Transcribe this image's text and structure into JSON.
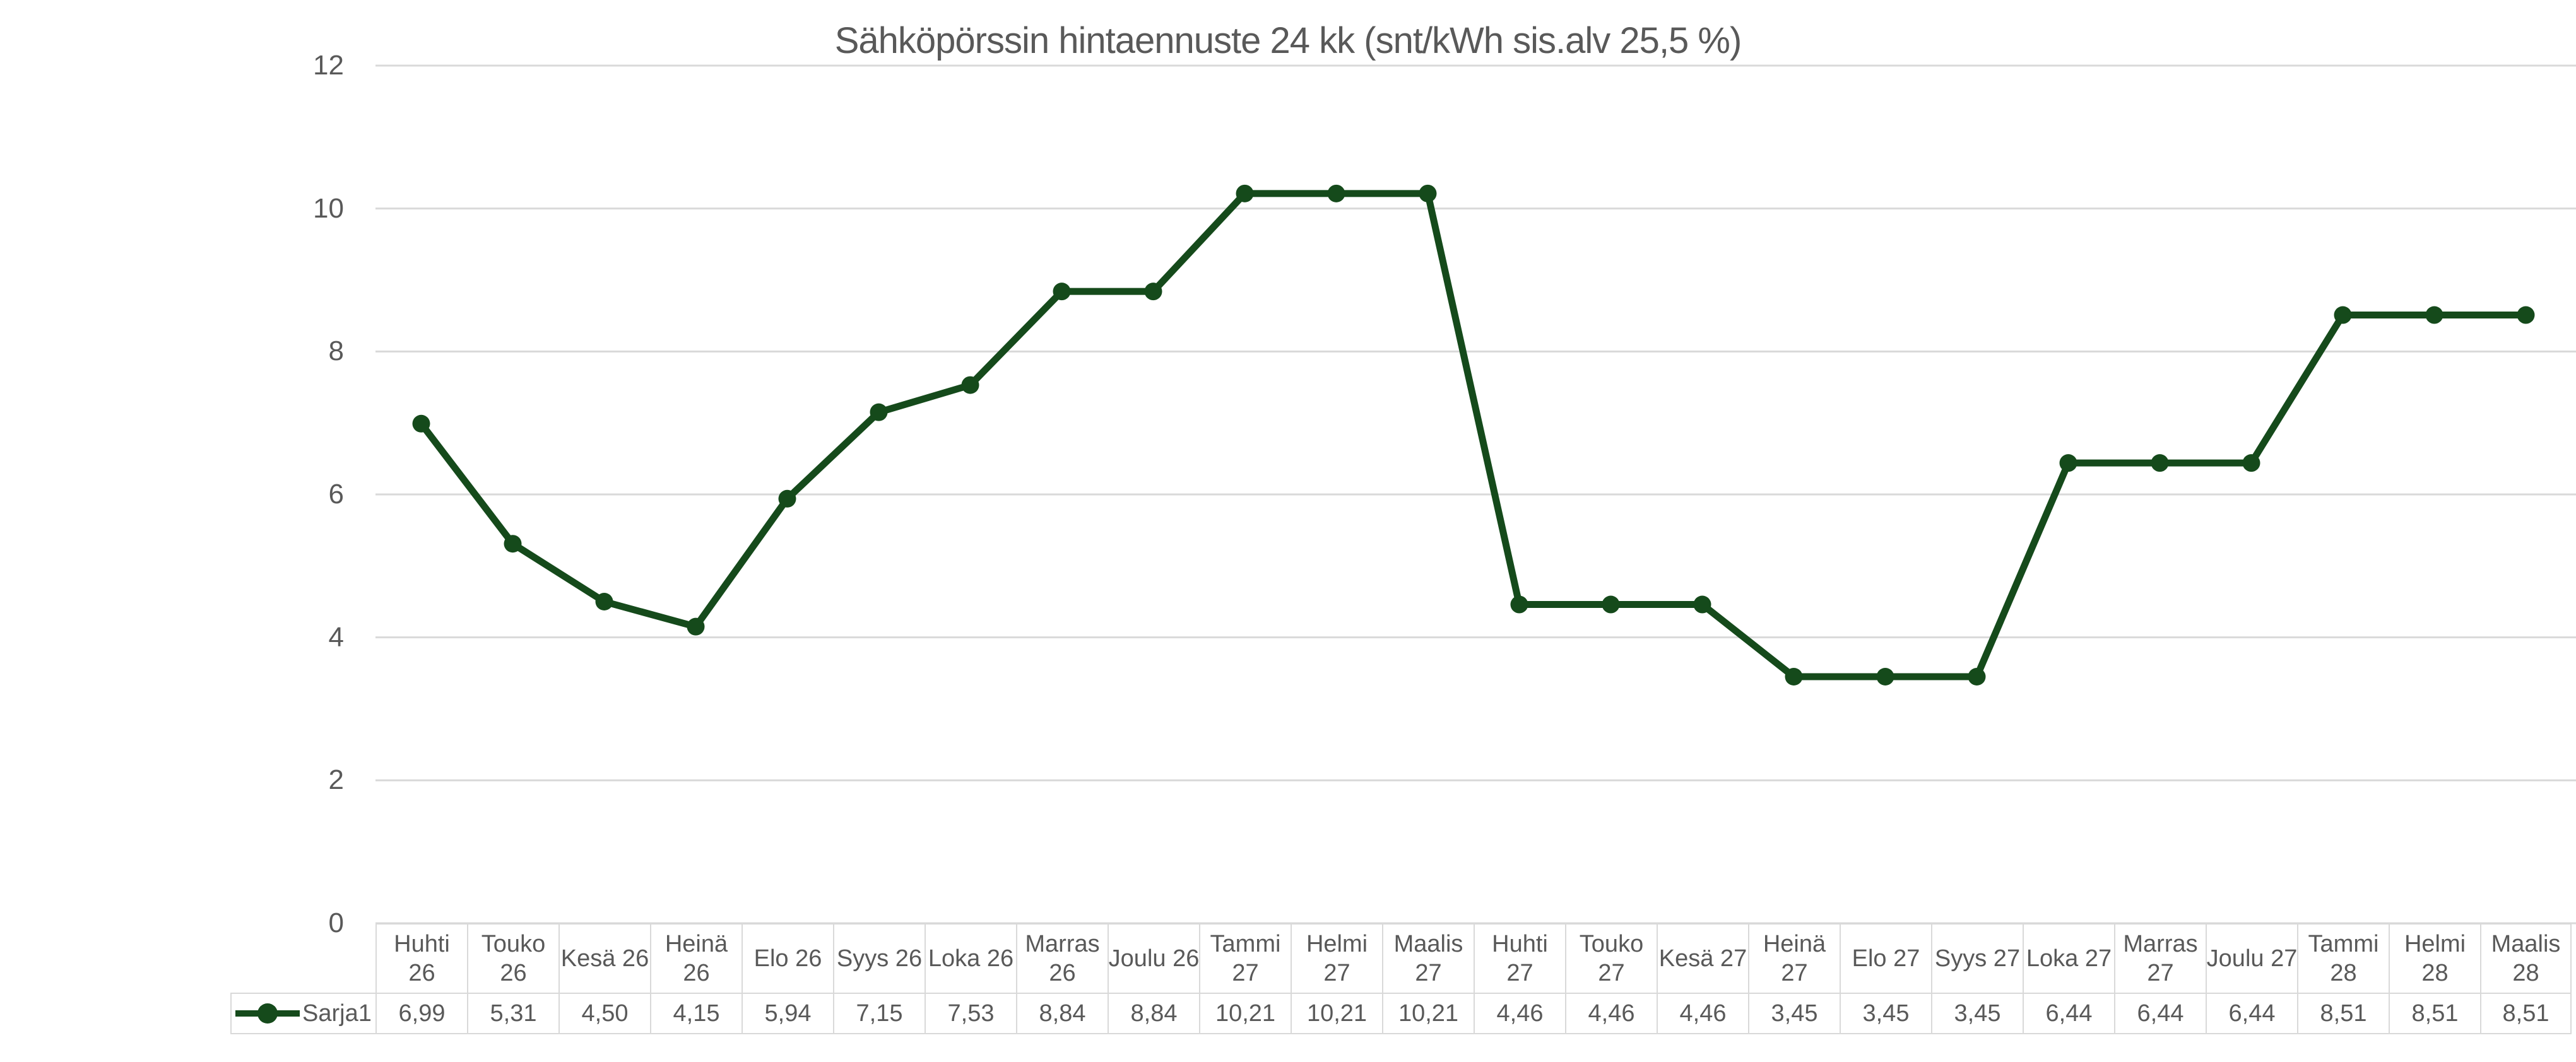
{
  "title": "Sähköpörssin hintaennuste 24 kk (snt/kWh sis.alv 25,5 %)",
  "legend": {
    "series_label": "Sarja1"
  },
  "y_axis": {
    "ticks": [
      "12",
      "10",
      "8",
      "6",
      "4",
      "2",
      "0"
    ],
    "min": 0,
    "max": 12
  },
  "colors": {
    "series": "#154a1b",
    "gridline": "#d9d9d9",
    "axis_text": "#595959",
    "table_border": "#d9d9d9",
    "title_text": "#595959"
  },
  "chart_data": {
    "type": "line",
    "title": "Sähköpörssin hintaennuste 24 kk (snt/kWh sis.alv 25,5 %)",
    "xlabel": "",
    "ylabel": "",
    "ylim": [
      0,
      12
    ],
    "grid": true,
    "legend_position": "table-left",
    "categories": [
      "Huhti 26",
      "Touko 26",
      "Kesä 26",
      "Heinä 26",
      "Elo 26",
      "Syys 26",
      "Loka 26",
      "Marras 26",
      "Joulu 26",
      "Tammi 27",
      "Helmi 27",
      "Maalis 27",
      "Huhti 27",
      "Touko 27",
      "Kesä 27",
      "Heinä 27",
      "Elo 27",
      "Syys 27",
      "Loka 27",
      "Marras 27",
      "Joulu 27",
      "Tammi 28",
      "Helmi 28",
      "Maalis 28"
    ],
    "categories_display": [
      "Huhti\n26",
      "Touko\n26",
      "Kesä 26",
      "Heinä\n26",
      "Elo 26",
      "Syys 26",
      "Loka 26",
      "Marras\n26",
      "Joulu 26",
      "Tammi\n27",
      "Helmi\n27",
      "Maalis\n27",
      "Huhti\n27",
      "Touko\n27",
      "Kesä 27",
      "Heinä\n27",
      "Elo 27",
      "Syys 27",
      "Loka 27",
      "Marras\n27",
      "Joulu 27",
      "Tammi\n28",
      "Helmi\n28",
      "Maalis\n28"
    ],
    "series": [
      {
        "name": "Sarja1",
        "values": [
          6.99,
          5.31,
          4.5,
          4.15,
          5.94,
          7.15,
          7.53,
          8.84,
          8.84,
          10.21,
          10.21,
          10.21,
          4.46,
          4.46,
          4.46,
          3.45,
          3.45,
          3.45,
          6.44,
          6.44,
          6.44,
          8.51,
          8.51,
          8.51
        ],
        "values_display": [
          "6,99",
          "5,31",
          "4,50",
          "4,15",
          "5,94",
          "7,15",
          "7,53",
          "8,84",
          "8,84",
          "10,21",
          "10,21",
          "10,21",
          "4,46",
          "4,46",
          "4,46",
          "3,45",
          "3,45",
          "3,45",
          "6,44",
          "6,44",
          "6,44",
          "8,51",
          "8,51",
          "8,51"
        ]
      }
    ]
  }
}
